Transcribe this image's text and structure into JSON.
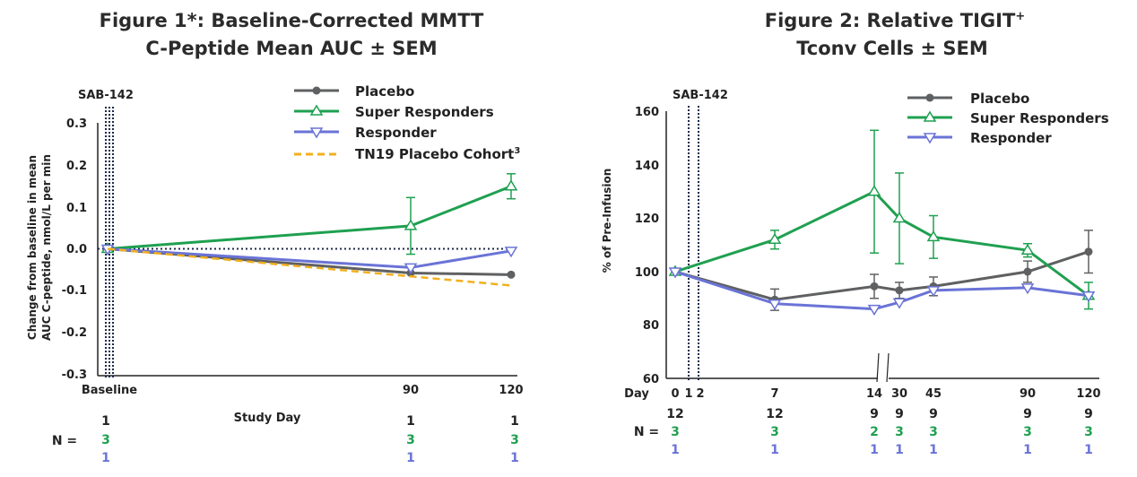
{
  "colors": {
    "placebo": "#5f6062",
    "super": "#1fa050",
    "responder": "#6a73d6",
    "tn19": "#f2b01e",
    "axis": "#222222",
    "marker_line": "#1c2a4a"
  },
  "chart_data": [
    {
      "type": "line",
      "title_line1": "Figure 1*: Baseline-Corrected MMTT",
      "title_line2": "C-Peptide Mean AUC ± SEM",
      "marker_label": "SAB-142",
      "ylabel_line1": "Change from baseline in mean",
      "ylabel_line2": "AUC C-peptide, nmol/L per min",
      "xlabel": "Study Day",
      "ylim": [
        -0.3,
        0.3
      ],
      "yticks": [
        "0.3",
        "0.2",
        "0.1",
        "0.0",
        "-0.1",
        "-0.2",
        "-0.3"
      ],
      "xticks": [
        "Baseline",
        "90",
        "120"
      ],
      "legend": [
        "Placebo",
        "Super Responders",
        "Responder",
        "TN19 Placebo Cohort"
      ],
      "legend_superscript": "3",
      "series": [
        {
          "name": "Placebo",
          "x": [
            0,
            90,
            120
          ],
          "y": [
            0.0,
            -0.058,
            -0.062
          ]
        },
        {
          "name": "Super Responders",
          "x": [
            0,
            90,
            120
          ],
          "y": [
            0.0,
            0.055,
            0.15
          ],
          "err": [
            0,
            0.068,
            0.03
          ]
        },
        {
          "name": "Responder",
          "x": [
            0,
            90,
            120
          ],
          "y": [
            0.0,
            -0.045,
            -0.005
          ]
        },
        {
          "name": "TN19 Placebo Cohort",
          "x": [
            0,
            120
          ],
          "y": [
            0.0,
            -0.088
          ]
        }
      ],
      "n_label": "N =",
      "n_rows": [
        {
          "x": [
            "1",
            "1",
            "1"
          ]
        },
        {
          "x": [
            "3",
            "3",
            "3"
          ]
        },
        {
          "x": [
            "1",
            "1",
            "1"
          ]
        }
      ]
    },
    {
      "type": "line",
      "title_line1": "Figure 2: Relative TIGIT",
      "title_sup": "+",
      "title_line2": "Tconv Cells ± SEM",
      "marker_label": "SAB-142",
      "ylabel": "% of Pre-Infusion",
      "ylim": [
        60,
        160
      ],
      "yticks": [
        "160",
        "140",
        "120",
        "100",
        "80",
        "60"
      ],
      "day_label": "Day",
      "xticks": [
        "0",
        "1",
        "2",
        "7",
        "14",
        "30",
        "45",
        "90",
        "120"
      ],
      "legend": [
        "Placebo",
        "Super Responders",
        "Responder"
      ],
      "series": [
        {
          "name": "Placebo",
          "x": [
            0,
            7,
            14,
            30,
            45,
            90,
            120
          ],
          "y": [
            100,
            89.5,
            94.5,
            93,
            94.5,
            100,
            107.5
          ],
          "err": [
            0,
            4,
            4.5,
            3,
            3.5,
            4,
            8
          ]
        },
        {
          "name": "Super Responders",
          "x": [
            0,
            7,
            14,
            30,
            45,
            90,
            120
          ],
          "y": [
            100,
            112,
            130,
            120,
            113,
            108,
            91
          ],
          "err": [
            0,
            3.5,
            23,
            17,
            8,
            2.5,
            5
          ]
        },
        {
          "name": "Responder",
          "x": [
            0,
            7,
            14,
            30,
            45,
            90,
            120
          ],
          "y": [
            100,
            88,
            86,
            88.5,
            93,
            94,
            91
          ]
        }
      ],
      "n_label": "N =",
      "n_rows": [
        {
          "x": [
            "12",
            "12",
            "9",
            "9",
            "9",
            "9",
            "9"
          ]
        },
        {
          "x": [
            "3",
            "3",
            "2",
            "3",
            "3",
            "3",
            "3"
          ]
        },
        {
          "x": [
            "1",
            "1",
            "1",
            "1",
            "1",
            "1",
            "1"
          ]
        }
      ]
    }
  ]
}
